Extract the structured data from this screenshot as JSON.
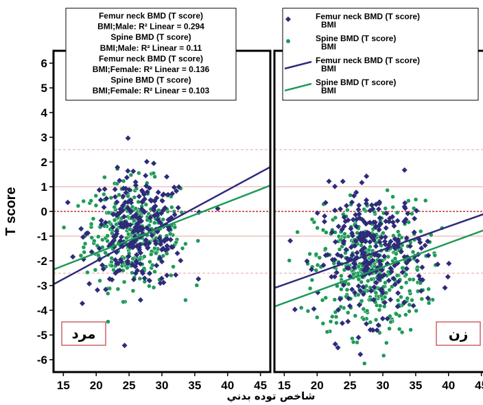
{
  "chart_data": {
    "type": "scatter",
    "ylabel": "T score",
    "xlabel": "شاخص توده بدني",
    "ylim": [
      -6.5,
      6.5
    ],
    "xlim": [
      13.5,
      46.5
    ],
    "x_ticks": [
      15,
      20,
      25,
      30,
      35,
      40,
      45
    ],
    "y_ticks": [
      -6,
      -5,
      -4,
      -3,
      -2,
      -1,
      0,
      1,
      2,
      3,
      4,
      5,
      6
    ],
    "reference_lines": [
      {
        "y": 2.5,
        "style": "dashed"
      },
      {
        "y": 1,
        "style": "solid"
      },
      {
        "y": 0,
        "style": "dashed"
      },
      {
        "y": -1,
        "style": "solid"
      },
      {
        "y": -2.5,
        "style": "dashed"
      }
    ],
    "colors": {
      "femur": "#2e2b7a",
      "spine": "#1e9a58",
      "reference": "#e8a0a0",
      "zero": "#c03030",
      "label_box": "#d06060"
    },
    "legend": {
      "placement": "top-right",
      "items": [
        {
          "line1": "Femur neck BMD (T score)",
          "line2": "BMI",
          "kind": "marker",
          "series": "femur"
        },
        {
          "line1": "Spine BMD (T score)",
          "line2": "BMI",
          "kind": "marker",
          "series": "spine"
        },
        {
          "line1": "Femur neck BMD (T score)",
          "line2": "BMI",
          "kind": "line",
          "series": "femur"
        },
        {
          "line1": "Spine BMD (T score)",
          "line2": "BMI",
          "kind": "line",
          "series": "spine"
        }
      ]
    },
    "stats_box": {
      "lines": [
        "Femur neck BMD (T score)",
        "BMI;Male: R² Linear = 0.294",
        "Spine BMD (T score)",
        "BMI;Male: R² Linear = 0.11",
        "Femur neck BMD (T score)",
        "BMI;Female: R² Linear = 0.136",
        "Spine BMD (T score)",
        "BMI;Female: R² Linear = 0.103"
      ]
    },
    "panels": [
      {
        "label": "مرد",
        "fits": [
          {
            "series": "femur",
            "x": [
              13.5,
              46.5
            ],
            "y": [
              -2.95,
              1.8
            ]
          },
          {
            "series": "spine",
            "x": [
              13.5,
              46.5
            ],
            "y": [
              -2.35,
              1.05
            ]
          }
        ],
        "cloud": {
          "femur": {
            "x_mean": 26.5,
            "x_sd": 3.8,
            "y_mean": -0.8,
            "y_sd": 1.15,
            "n": 240
          },
          "spine": {
            "x_mean": 25.5,
            "x_sd": 3.6,
            "y_mean": -0.9,
            "y_sd": 1.05,
            "n": 320
          }
        }
      },
      {
        "label": "زن",
        "fits": [
          {
            "series": "femur",
            "x": [
              13.5,
              46.5
            ],
            "y": [
              -3.1,
              0
            ]
          },
          {
            "series": "spine",
            "x": [
              13.5,
              46.5
            ],
            "y": [
              -3.85,
              -0.65
            ]
          }
        ],
        "cloud": {
          "femur": {
            "x_mean": 28.5,
            "x_sd": 4.2,
            "y_mean": -1.7,
            "y_sd": 1.3,
            "n": 260
          },
          "spine": {
            "x_mean": 28,
            "x_sd": 4.2,
            "y_mean": -2.3,
            "y_sd": 1.35,
            "n": 420
          }
        }
      }
    ]
  }
}
